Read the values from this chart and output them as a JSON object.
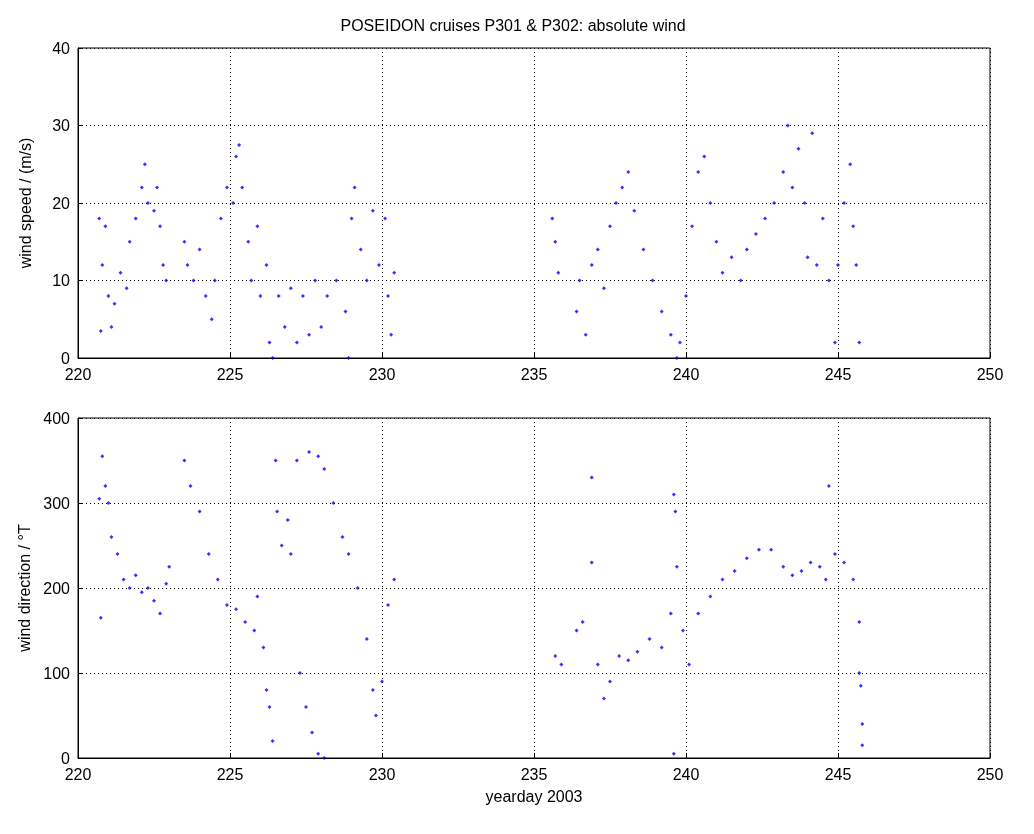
{
  "chart_data": [
    {
      "type": "scatter",
      "title": "POSEIDON cruises P301 & P302: absolute wind",
      "ylabel": "wind speed / (m/s)",
      "color": "#0000ff",
      "marker": "diamond",
      "grid": true,
      "xlim": [
        220,
        250
      ],
      "xticks": [
        220,
        225,
        230,
        235,
        240,
        245,
        250
      ],
      "ylim": [
        0,
        40
      ],
      "yticks": [
        0,
        10,
        20,
        30,
        40
      ],
      "x": [
        220.7,
        220.75,
        220.8,
        220.9,
        221.0,
        221.1,
        221.2,
        221.4,
        221.6,
        221.7,
        221.9,
        222.1,
        222.2,
        222.3,
        222.5,
        222.6,
        222.7,
        222.8,
        222.9,
        223.5,
        223.6,
        223.8,
        224.0,
        224.2,
        224.4,
        224.5,
        224.7,
        224.9,
        225.1,
        225.2,
        225.3,
        225.4,
        225.6,
        225.7,
        225.9,
        226.0,
        226.2,
        226.3,
        226.4,
        226.6,
        226.8,
        227.0,
        227.2,
        227.4,
        227.6,
        227.8,
        228.0,
        228.2,
        228.5,
        228.8,
        228.9,
        229.0,
        229.1,
        229.3,
        229.5,
        229.7,
        229.9,
        230.1,
        230.2,
        230.3,
        230.4,
        235.6,
        235.7,
        235.8,
        236.4,
        236.5,
        236.7,
        236.9,
        237.1,
        237.3,
        237.5,
        237.7,
        237.9,
        238.1,
        238.3,
        238.6,
        238.9,
        239.2,
        239.5,
        239.7,
        239.8,
        240.0,
        240.2,
        240.4,
        240.6,
        240.8,
        241.0,
        241.2,
        241.5,
        241.8,
        242.0,
        242.3,
        242.6,
        242.9,
        243.2,
        243.35,
        243.5,
        243.7,
        243.9,
        244.0,
        244.15,
        244.3,
        244.5,
        244.7,
        244.9,
        245.0,
        245.2,
        245.4,
        245.5,
        245.6,
        245.7
      ],
      "values": [
        18,
        3.5,
        12,
        17,
        8,
        4,
        7,
        11,
        9,
        15,
        18,
        22,
        25,
        20,
        19,
        22,
        17,
        12,
        10,
        15,
        12,
        10,
        14,
        8,
        5,
        10,
        18,
        22,
        20,
        26,
        27.5,
        22,
        15,
        10,
        17,
        8,
        12,
        2,
        0,
        8,
        4,
        9,
        2,
        8,
        3,
        10,
        4,
        8,
        10,
        6,
        0,
        18,
        22,
        14,
        10,
        19,
        12,
        18,
        8,
        3,
        11,
        18,
        15,
        11,
        6,
        10,
        3,
        12,
        14,
        9,
        17,
        20,
        22,
        24,
        19,
        14,
        10,
        6,
        3,
        0,
        2,
        8,
        17,
        24,
        26,
        20,
        15,
        11,
        13,
        10,
        14,
        16,
        18,
        20,
        24,
        30,
        22,
        27,
        20,
        13,
        29,
        12,
        18,
        10,
        2,
        12,
        20,
        25,
        17,
        12,
        2
      ]
    },
    {
      "type": "scatter",
      "xlabel": "yearday 2003",
      "ylabel": "wind direction / °T",
      "color": "#0000ff",
      "marker": "diamond",
      "grid": true,
      "xlim": [
        220,
        250
      ],
      "xticks": [
        220,
        225,
        230,
        235,
        240,
        245,
        250
      ],
      "ylim": [
        0,
        400
      ],
      "yticks": [
        0,
        100,
        200,
        300,
        400
      ],
      "x": [
        220.7,
        220.75,
        220.8,
        220.9,
        221.0,
        221.1,
        221.3,
        221.5,
        221.7,
        221.9,
        222.1,
        222.3,
        222.5,
        222.7,
        222.9,
        223.0,
        223.5,
        223.7,
        224.0,
        224.3,
        224.6,
        224.9,
        225.2,
        225.5,
        225.8,
        225.9,
        226.1,
        226.2,
        226.3,
        226.4,
        226.5,
        226.55,
        226.7,
        226.9,
        227.0,
        227.2,
        227.3,
        227.5,
        227.7,
        227.9,
        228.1,
        227.6,
        227.9,
        228.1,
        228.4,
        228.7,
        228.9,
        229.2,
        229.5,
        229.7,
        229.8,
        230.0,
        230.2,
        230.4,
        235.7,
        235.9,
        236.4,
        236.6,
        236.9,
        236.9,
        237.1,
        237.3,
        237.5,
        237.8,
        238.1,
        238.4,
        238.8,
        239.2,
        239.5,
        239.6,
        239.65,
        239.7,
        239.6,
        239.9,
        240.1,
        240.4,
        240.8,
        241.2,
        241.6,
        242.0,
        242.4,
        242.8,
        243.2,
        243.5,
        243.8,
        244.1,
        244.4,
        244.6,
        244.7,
        244.9,
        245.2,
        245.5,
        245.7,
        245.7,
        245.75,
        245.8,
        245.8
      ],
      "values": [
        305,
        165,
        355,
        320,
        300,
        260,
        240,
        210,
        200,
        215,
        195,
        200,
        185,
        170,
        205,
        225,
        350,
        320,
        290,
        240,
        210,
        180,
        175,
        160,
        150,
        190,
        130,
        80,
        60,
        20,
        350,
        290,
        250,
        280,
        240,
        350,
        100,
        60,
        30,
        5,
        0,
        360,
        355,
        340,
        300,
        260,
        240,
        200,
        140,
        80,
        50,
        90,
        180,
        210,
        120,
        110,
        150,
        160,
        330,
        230,
        110,
        70,
        90,
        120,
        115,
        125,
        140,
        130,
        170,
        310,
        290,
        225,
        5,
        150,
        110,
        170,
        190,
        210,
        220,
        235,
        245,
        245,
        225,
        215,
        220,
        230,
        225,
        210,
        320,
        240,
        230,
        210,
        160,
        100,
        85,
        40,
        15
      ]
    }
  ]
}
